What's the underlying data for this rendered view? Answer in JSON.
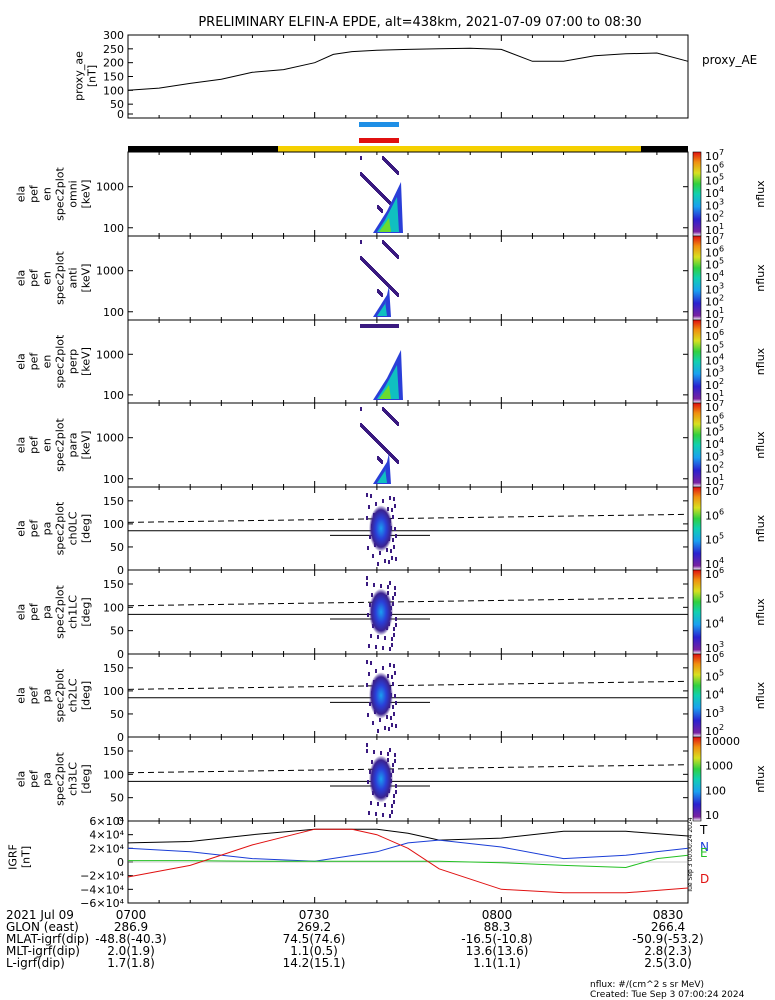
{
  "header": {
    "title": "PRELIMINARY ELFIN-A EPDE, alt=438km, 2021-07-09 07:00 to 08:30"
  },
  "colors": {
    "blue_bar": "#1f8fe6",
    "red_bar": "#e01010",
    "sun_bar": "#f5d000",
    "shadow_bar": "#000000",
    "bt": "#000000",
    "bn": "#1a3dd6",
    "be": "#22c022",
    "bd": "#e01010"
  },
  "chart_data": [
    {
      "type": "line",
      "panel": "proxy_ae",
      "ylabel_lines": [
        "proxy_ae",
        "[nT]"
      ],
      "right_label": "proxy_AE",
      "ylim": [
        0,
        300
      ],
      "yticks": [
        0,
        50,
        100,
        150,
        200,
        250,
        300
      ],
      "x": [
        0,
        5,
        10,
        15,
        20,
        25,
        30,
        33,
        36,
        40,
        45,
        50,
        55,
        60,
        65,
        70,
        75,
        80,
        85,
        90
      ],
      "values": [
        100,
        108,
        125,
        140,
        165,
        175,
        200,
        230,
        240,
        245,
        248,
        250,
        252,
        248,
        205,
        205,
        225,
        232,
        235,
        205
      ]
    },
    {
      "type": "heatmap",
      "panel": "omni",
      "ylabel_lines": [
        "ela",
        "pef",
        "en",
        "spec2plot",
        "omni",
        "[keV]"
      ],
      "ylim": [
        63,
        7000
      ],
      "yscale": "log",
      "yticks": [
        100,
        1000
      ],
      "colorbar": {
        "label": "nflux",
        "ticks": [
          "10",
          "10",
          "10",
          "10",
          "10",
          "10",
          "10"
        ],
        "exps": [
          "1",
          "2",
          "3",
          "4",
          "5",
          "6",
          "7"
        ]
      }
    },
    {
      "type": "heatmap",
      "panel": "anti",
      "ylabel_lines": [
        "ela",
        "pef",
        "en",
        "spec2plot",
        "anti",
        "[keV]"
      ],
      "ylim": [
        63,
        7000
      ],
      "yscale": "log",
      "yticks": [
        100,
        1000
      ],
      "colorbar": {
        "label": "nflux",
        "ticks": [
          "10",
          "10",
          "10",
          "10",
          "10",
          "10",
          "10"
        ],
        "exps": [
          "1",
          "2",
          "3",
          "4",
          "5",
          "6",
          "7"
        ]
      }
    },
    {
      "type": "heatmap",
      "panel": "perp",
      "ylabel_lines": [
        "ela",
        "pef",
        "en",
        "spec2plot",
        "perp",
        "[keV]"
      ],
      "ylim": [
        63,
        7000
      ],
      "yscale": "log",
      "yticks": [
        100,
        1000
      ],
      "colorbar": {
        "label": "nflux",
        "ticks": [
          "10",
          "10",
          "10",
          "10",
          "10",
          "10",
          "10"
        ],
        "exps": [
          "1",
          "2",
          "3",
          "4",
          "5",
          "6",
          "7"
        ]
      }
    },
    {
      "type": "heatmap",
      "panel": "para",
      "ylabel_lines": [
        "ela",
        "pef",
        "en",
        "spec2plot",
        "para",
        "[keV]"
      ],
      "ylim": [
        63,
        7000
      ],
      "yscale": "log",
      "yticks": [
        100,
        1000
      ],
      "colorbar": {
        "label": "nflux",
        "ticks": [
          "10",
          "10",
          "10",
          "10",
          "10",
          "10",
          "10"
        ],
        "exps": [
          "1",
          "2",
          "3",
          "4",
          "5",
          "6",
          "7"
        ]
      }
    },
    {
      "type": "heatmap",
      "panel": "ch0LC",
      "ylabel_lines": [
        "ela",
        "pef",
        "pa",
        "spec2plot",
        "ch0LC",
        "[deg]"
      ],
      "ylim": [
        0,
        180
      ],
      "yticks": [
        0,
        50,
        100,
        150
      ],
      "colorbar": {
        "label": "nflux",
        "ticks": [
          "10",
          "10",
          "10",
          "10"
        ],
        "exps": [
          "4",
          "5",
          "6",
          "7"
        ]
      }
    },
    {
      "type": "heatmap",
      "panel": "ch1LC",
      "ylabel_lines": [
        "ela",
        "pef",
        "pa",
        "spec2plot",
        "ch1LC",
        "[deg]"
      ],
      "ylim": [
        0,
        180
      ],
      "yticks": [
        0,
        50,
        100,
        150
      ],
      "colorbar": {
        "label": "nflux",
        "ticks": [
          "10",
          "10",
          "10",
          "10"
        ],
        "exps": [
          "3",
          "4",
          "5",
          "6"
        ]
      }
    },
    {
      "type": "heatmap",
      "panel": "ch2LC",
      "ylabel_lines": [
        "ela",
        "pef",
        "pa",
        "spec2plot",
        "ch2LC",
        "[deg]"
      ],
      "ylim": [
        0,
        180
      ],
      "yticks": [
        0,
        50,
        100,
        150
      ],
      "colorbar": {
        "label": "nflux",
        "ticks": [
          "10",
          "10",
          "10",
          "10",
          "10"
        ],
        "exps": [
          "2",
          "3",
          "4",
          "5",
          "6"
        ]
      }
    },
    {
      "type": "heatmap",
      "panel": "ch3LC",
      "ylabel_lines": [
        "ela",
        "pef",
        "pa",
        "spec2plot",
        "ch3LC",
        "[deg]"
      ],
      "ylim": [
        0,
        180
      ],
      "yticks": [
        0,
        50,
        100,
        150
      ],
      "colorbar": {
        "label": "nflux",
        "ticks": [
          "10",
          "100",
          "1000",
          "10000"
        ],
        "exps": [
          "",
          "",
          "",
          ""
        ]
      }
    },
    {
      "type": "line",
      "panel": "igrf",
      "ylabel_lines": [
        "IGRF",
        "[nT]"
      ],
      "ylim": [
        -60000,
        60000
      ],
      "yticks": [
        "6×10⁴",
        "4×10⁴",
        "2×10⁴",
        "0",
        "−2×10⁴",
        "−4×10⁴",
        "−6×10⁴"
      ],
      "series": [
        {
          "name": "T",
          "x": [
            0,
            10,
            20,
            30,
            40,
            45,
            50,
            60,
            70,
            80,
            90
          ],
          "values": [
            28000,
            30000,
            40000,
            48000,
            48000,
            42000,
            32000,
            35000,
            45000,
            45000,
            38000
          ]
        },
        {
          "name": "N",
          "x": [
            0,
            10,
            20,
            30,
            40,
            45,
            50,
            60,
            70,
            80,
            90
          ],
          "values": [
            20000,
            15000,
            5000,
            1000,
            15000,
            28000,
            32000,
            22000,
            5000,
            10000,
            20000
          ]
        },
        {
          "name": "E",
          "x": [
            0,
            10,
            20,
            30,
            40,
            45,
            50,
            60,
            70,
            80,
            85,
            90
          ],
          "values": [
            2000,
            2000,
            1000,
            1000,
            1000,
            1000,
            1000,
            -1000,
            -5000,
            -8000,
            5000,
            10000
          ]
        },
        {
          "name": "D",
          "x": [
            0,
            10,
            20,
            30,
            36,
            40,
            45,
            50,
            60,
            70,
            80,
            90
          ],
          "values": [
            -22000,
            -5000,
            25000,
            48000,
            48000,
            40000,
            20000,
            -10000,
            -40000,
            -45000,
            -45000,
            -38000
          ]
        }
      ]
    }
  ],
  "x_axis": {
    "ticks": [
      "0700",
      "0730",
      "0800",
      "0830"
    ],
    "rows": [
      {
        "label": "2021 Jul 09",
        "values": [
          "0700",
          "0730",
          "0800",
          "0830"
        ]
      },
      {
        "label": "GLON (east)",
        "values": [
          "286.9",
          "269.2",
          "88.3",
          "266.4"
        ]
      },
      {
        "label": "MLAT-igrf(dip)",
        "values": [
          "-48.8(-40.3)",
          "74.5(74.6)",
          "-16.5(-10.8)",
          "-50.9(-53.2)"
        ]
      },
      {
        "label": "MLT-igrf(dip)",
        "values": [
          "2.0(1.9)",
          "1.1(0.5)",
          "13.6(13.6)",
          "2.8(2.3)"
        ]
      },
      {
        "label": "L-igrf(dip)",
        "values": [
          "1.7(1.8)",
          "14.2(15.1)",
          "1.1(1.1)",
          "2.5(3.0)"
        ]
      }
    ]
  },
  "footer": {
    "units": "nflux: #/(cm^2 s sr MeV)",
    "created": "Created: Tue Sep  3 07:00:24 2024",
    "side_stamp": "Tue Sep 3 00:00:24 2024"
  }
}
